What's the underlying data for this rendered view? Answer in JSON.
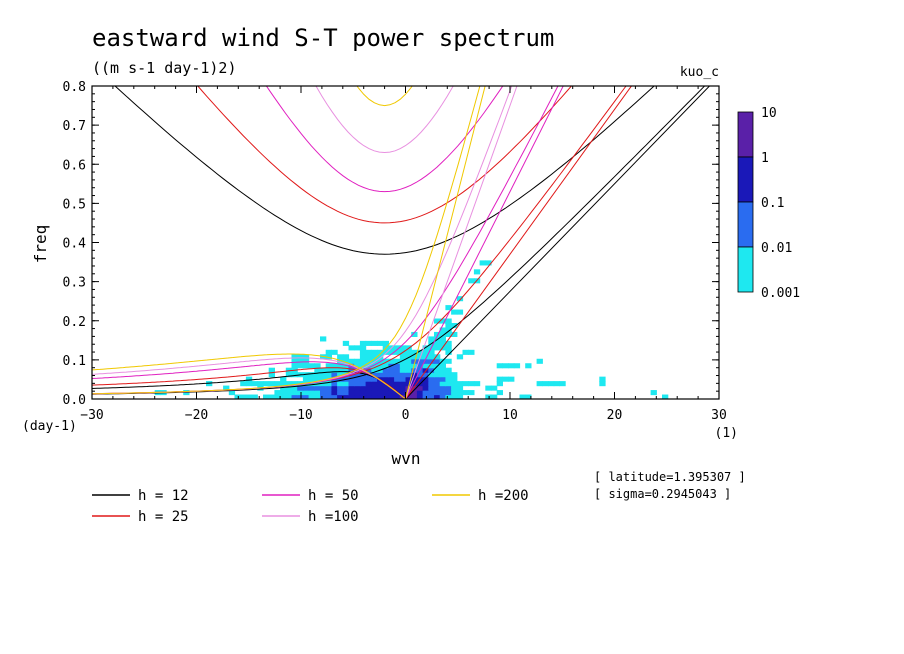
{
  "header": {
    "title": "eastward wind S-T power spectrum",
    "units": "((m s-1 day-1)2)",
    "run": "kuo_c"
  },
  "info": {
    "latitude": "[ latitude=1.395307 ]",
    "sigma": "[ sigma=0.2945043 ]"
  },
  "axes": {
    "xlabel": "wvn",
    "ylabel": "freq",
    "x_unit": "(1)",
    "y_unit": "(day-1)",
    "x_ticks": [
      "−30",
      "−20",
      "−10",
      "0",
      "10",
      "20",
      "30"
    ],
    "y_ticks": [
      "0.0",
      "0.1",
      "0.2",
      "0.3",
      "0.4",
      "0.5",
      "0.6",
      "0.7",
      "0.8"
    ]
  },
  "colorbar": {
    "labels": [
      "10",
      "1",
      "0.1",
      "0.01",
      "0.001"
    ],
    "colors": [
      "#5a20a8",
      "#1a18b8",
      "#2a6cf0",
      "#1ee8f0"
    ]
  },
  "legend": [
    {
      "label": "h = 12",
      "color": "#000000"
    },
    {
      "label": "h = 25",
      "color": "#e01818"
    },
    {
      "label": "h = 50",
      "color": "#e020c0"
    },
    {
      "label": "h =100",
      "color": "#e890e0"
    },
    {
      "label": "h =200",
      "color": "#f0c800"
    }
  ],
  "chart_data": {
    "type": "heatmap",
    "title": "eastward wind S-T power spectrum",
    "subtitle": "((m s-1 day-1)2)",
    "xlabel": "wvn",
    "ylabel": "freq",
    "xlim": [
      -30,
      30
    ],
    "ylim": [
      0,
      0.8
    ],
    "color_levels": [
      0.001,
      0.01,
      0.1,
      1,
      10
    ],
    "equivalent_depths": [
      12,
      25,
      50,
      100,
      200
    ],
    "series": [
      {
        "name": "h = 12",
        "color": "#000000",
        "kelvin_slope": 0.0275,
        "ig_freq_at_0": 0.37,
        "rossby_peak": [
          -6,
          0.07
        ]
      },
      {
        "name": "h = 25",
        "color": "#e01818",
        "kelvin_slope": 0.037,
        "ig_freq_at_0": 0.45,
        "rossby_peak": [
          -7,
          0.08
        ]
      },
      {
        "name": "h = 50",
        "color": "#e020c0",
        "kelvin_slope": 0.053,
        "ig_freq_at_0": 0.53,
        "rossby_peak": [
          -9,
          0.095
        ]
      },
      {
        "name": "h =100",
        "color": "#e890e0",
        "kelvin_slope": 0.075,
        "ig_freq_at_0": 0.63,
        "rossby_peak": [
          -10,
          0.105
        ]
      },
      {
        "name": "h =200",
        "color": "#f0c800",
        "kelvin_slope": 0.105,
        "ig_freq_at_0": 0.75,
        "rossby_peak": [
          -11,
          0.115
        ]
      }
    ],
    "legend_position": "bottom"
  }
}
